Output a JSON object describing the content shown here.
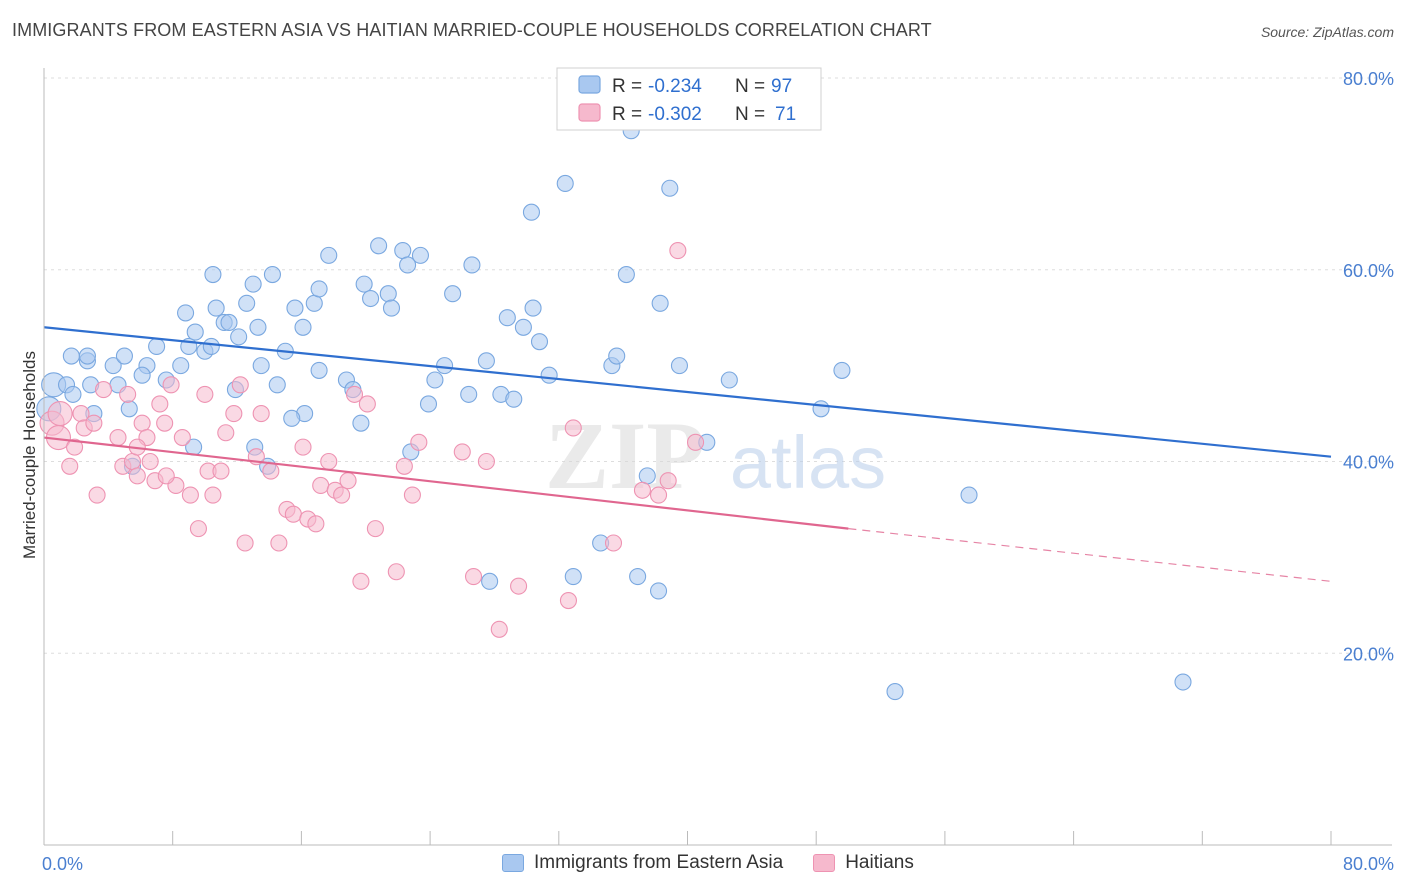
{
  "title": "IMMIGRANTS FROM EASTERN ASIA VS HAITIAN MARRIED-COUPLE HOUSEHOLDS CORRELATION CHART",
  "source": "Source: ZipAtlas.com",
  "watermark": {
    "zip": "ZIP",
    "atlas": "atlas"
  },
  "colors": {
    "blue_fill": "#a9c8f0",
    "blue_stroke": "#7aa8e0",
    "blue_line": "#2f6fcf",
    "pink_fill": "#f6b9cd",
    "pink_stroke": "#ee93b2",
    "pink_line": "#e0668f",
    "axis_text": "#4a7fd0",
    "grid": "#dddddd"
  },
  "legend": {
    "rows": [
      {
        "r_label": "R =",
        "r_value": "-0.234",
        "n_label": "N =",
        "n_value": "97"
      },
      {
        "r_label": "R =",
        "r_value": "-0.302",
        "n_label": "N =",
        "n_value": "71"
      }
    ]
  },
  "chart_data": {
    "type": "scatter",
    "xlabel": "",
    "ylabel": "Married-couple Households",
    "xlim": [
      0,
      80
    ],
    "ylim": [
      0,
      80
    ],
    "x_tick_labels": [
      "0.0%",
      "80.0%"
    ],
    "y_tick_labels": [
      "20.0%",
      "40.0%",
      "60.0%",
      "80.0%"
    ],
    "y_ticks": [
      20,
      40,
      60,
      80
    ],
    "legend_position": "top-center",
    "series": [
      {
        "name": "Immigrants from Eastern Asia",
        "r": -0.234,
        "n": 97,
        "trend": {
          "x0": 0,
          "y0": 54,
          "x1": 80,
          "y1": 40.5
        },
        "points": [
          [
            0.3,
            45.5
          ],
          [
            0.6,
            48
          ],
          [
            1.4,
            48
          ],
          [
            1.7,
            51
          ],
          [
            2.7,
            50.5
          ],
          [
            2.9,
            48
          ],
          [
            1.8,
            47
          ],
          [
            2.7,
            51
          ],
          [
            4.3,
            50
          ],
          [
            5,
            51
          ],
          [
            4.6,
            48
          ],
          [
            3.1,
            45
          ],
          [
            5.3,
            45.5
          ],
          [
            6.4,
            50
          ],
          [
            7,
            52
          ],
          [
            7.6,
            48.5
          ],
          [
            8.5,
            50
          ],
          [
            9,
            52
          ],
          [
            5.5,
            39.5
          ],
          [
            6.1,
            49
          ],
          [
            8.8,
            55.5
          ],
          [
            9.4,
            53.5
          ],
          [
            10,
            51.5
          ],
          [
            10.4,
            52
          ],
          [
            10.5,
            59.5
          ],
          [
            10.7,
            56
          ],
          [
            11.2,
            54.5
          ],
          [
            11.5,
            54.5
          ],
          [
            12.1,
            53
          ],
          [
            12.6,
            56.5
          ],
          [
            13,
            58.5
          ],
          [
            13.3,
            54
          ],
          [
            13.5,
            50
          ],
          [
            14.2,
            59.5
          ],
          [
            14.5,
            48
          ],
          [
            15,
            51.5
          ],
          [
            15.6,
            56
          ],
          [
            16.8,
            56.5
          ],
          [
            16.1,
            54
          ],
          [
            17.1,
            58
          ],
          [
            17.7,
            61.5
          ],
          [
            17.1,
            49.5
          ],
          [
            18.8,
            48.5
          ],
          [
            19.2,
            47.5
          ],
          [
            19.9,
            58.5
          ],
          [
            20.3,
            57
          ],
          [
            20.8,
            62.5
          ],
          [
            21.4,
            57.5
          ],
          [
            21.6,
            56
          ],
          [
            22.3,
            62
          ],
          [
            22.6,
            60.5
          ],
          [
            23.4,
            61.5
          ],
          [
            23.9,
            46
          ],
          [
            24.3,
            48.5
          ],
          [
            24.9,
            50
          ],
          [
            25.4,
            57.5
          ],
          [
            26.4,
            47
          ],
          [
            26.6,
            60.5
          ],
          [
            27.5,
            50.5
          ],
          [
            28.4,
            47
          ],
          [
            28.8,
            55
          ],
          [
            29.2,
            46.5
          ],
          [
            29.8,
            54
          ],
          [
            30.4,
            56
          ],
          [
            30.8,
            52.5
          ],
          [
            30.3,
            66
          ],
          [
            31.4,
            49
          ],
          [
            32.4,
            69
          ],
          [
            32.9,
            28
          ],
          [
            34.6,
            31.5
          ],
          [
            35.3,
            50
          ],
          [
            35.6,
            51
          ],
          [
            36.2,
            59.5
          ],
          [
            36.5,
            74.5
          ],
          [
            36.9,
            28
          ],
          [
            38.2,
            26.5
          ],
          [
            37.5,
            38.5
          ],
          [
            38.9,
            78
          ],
          [
            38.3,
            56.5
          ],
          [
            38.9,
            68.5
          ],
          [
            39.5,
            50
          ],
          [
            41.2,
            42
          ],
          [
            42.6,
            48.5
          ],
          [
            48.3,
            45.5
          ],
          [
            49.6,
            49.5
          ],
          [
            57.5,
            36.5
          ],
          [
            52.9,
            16
          ],
          [
            70.8,
            17
          ],
          [
            13.9,
            39.5
          ],
          [
            9.3,
            41.5
          ],
          [
            11.9,
            47.5
          ],
          [
            22.8,
            41
          ],
          [
            16.2,
            45
          ],
          [
            19.7,
            44
          ],
          [
            15.4,
            44.5
          ],
          [
            13.1,
            41.5
          ],
          [
            27.7,
            27.5
          ]
        ]
      },
      {
        "name": "Haitians",
        "r": -0.302,
        "n": 71,
        "trend": {
          "x0": 0,
          "y0": 42.5,
          "x1": 50,
          "y1": 33,
          "dash_to_x": 80,
          "dash_to_y": 27.5
        },
        "points": [
          [
            0.5,
            44
          ],
          [
            0.9,
            42.5
          ],
          [
            1,
            45
          ],
          [
            1.6,
            39.5
          ],
          [
            1.9,
            41.5
          ],
          [
            2.3,
            45
          ],
          [
            2.5,
            43.5
          ],
          [
            3.1,
            44
          ],
          [
            3.3,
            36.5
          ],
          [
            3.7,
            47.5
          ],
          [
            4.6,
            42.5
          ],
          [
            4.9,
            39.5
          ],
          [
            5.2,
            47
          ],
          [
            5.5,
            40
          ],
          [
            5.8,
            38.5
          ],
          [
            6.1,
            44
          ],
          [
            6.4,
            42.5
          ],
          [
            6.6,
            40
          ],
          [
            6.9,
            38
          ],
          [
            7.2,
            46
          ],
          [
            7.5,
            44
          ],
          [
            7.9,
            48
          ],
          [
            8.2,
            37.5
          ],
          [
            8.6,
            42.5
          ],
          [
            9.1,
            36.5
          ],
          [
            9.6,
            33
          ],
          [
            10,
            47
          ],
          [
            10.2,
            39
          ],
          [
            10.5,
            36.5
          ],
          [
            11,
            39
          ],
          [
            11.3,
            43
          ],
          [
            11.8,
            45
          ],
          [
            12.2,
            48
          ],
          [
            12.5,
            31.5
          ],
          [
            13.2,
            40.5
          ],
          [
            13.5,
            45
          ],
          [
            14.1,
            39
          ],
          [
            14.6,
            31.5
          ],
          [
            15.1,
            35
          ],
          [
            15.5,
            34.5
          ],
          [
            16.1,
            41.5
          ],
          [
            16.4,
            34
          ],
          [
            16.9,
            33.5
          ],
          [
            17.2,
            37.5
          ],
          [
            17.7,
            40
          ],
          [
            18.1,
            37
          ],
          [
            18.5,
            36.5
          ],
          [
            18.9,
            38
          ],
          [
            19.3,
            47
          ],
          [
            19.7,
            27.5
          ],
          [
            20.1,
            46
          ],
          [
            20.6,
            33
          ],
          [
            21.9,
            28.5
          ],
          [
            22.4,
            39.5
          ],
          [
            22.9,
            36.5
          ],
          [
            23.3,
            42
          ],
          [
            26,
            41
          ],
          [
            26.7,
            28
          ],
          [
            27.5,
            40
          ],
          [
            28.3,
            22.5
          ],
          [
            29.5,
            27
          ],
          [
            32.6,
            25.5
          ],
          [
            32.9,
            43.5
          ],
          [
            35.4,
            31.5
          ],
          [
            37.2,
            37
          ],
          [
            38.2,
            36.5
          ],
          [
            38.8,
            38
          ],
          [
            39.4,
            62
          ],
          [
            40.5,
            42
          ],
          [
            5.8,
            41.5
          ],
          [
            7.6,
            38.5
          ]
        ]
      }
    ]
  }
}
